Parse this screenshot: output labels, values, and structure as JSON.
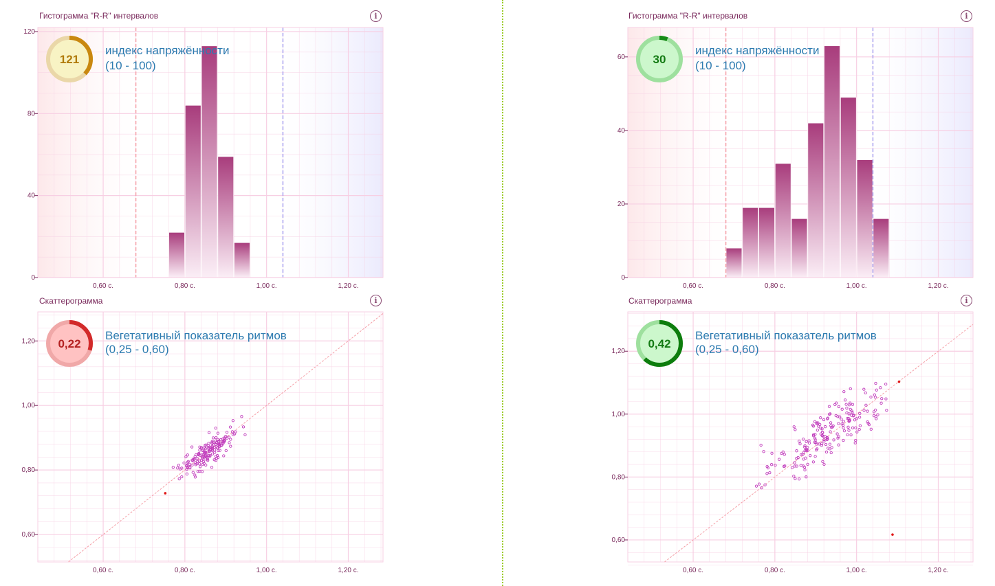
{
  "panels": [
    {
      "histogram": {
        "title": "Гистограмма \"R-R\" интервалов",
        "indicator": {
          "value": "121",
          "title": "индекс напряжённости",
          "range": "(10 - 100)",
          "ring_color": "#c9880f",
          "ring_bg": "#ead7a8",
          "fill_color": "#f8f3c4",
          "text_color": "#b07a0a"
        }
      },
      "scatter": {
        "title": "Скаттерограмма",
        "indicator": {
          "value": "0,22",
          "title": "Вегетативный показатель ритмов",
          "range": "(0,25 - 0,60)",
          "ring_color": "#d22a2a",
          "ring_bg": "#f0a8a8",
          "fill_color": "#ffc2c2",
          "text_color": "#b32020"
        }
      }
    },
    {
      "histogram": {
        "title": "Гистограмма \"R-R\" интервалов",
        "indicator": {
          "value": "30",
          "title": "индекс напряжённости",
          "range": "(10 - 100)",
          "ring_color": "#168a16",
          "ring_bg": "#9ee09e",
          "fill_color": "#ccf7cc",
          "text_color": "#137a13"
        }
      },
      "scatter": {
        "title": "Скаттерограмма",
        "indicator": {
          "value": "0,42",
          "title": "Вегетативный показатель ритмов",
          "range": "(0,25 - 0,60)",
          "ring_color": "#0d7d0d",
          "ring_bg": "#9ee09e",
          "fill_color": "#ccf7cc",
          "text_color": "#137a13"
        }
      }
    }
  ],
  "colors": {
    "bar_top": "#a83c7c",
    "bar_bottom": "#fbeef6",
    "grid": "#f7cfe3",
    "low_zone": "#fde8ea",
    "high_zone": "#ebeafd",
    "low_line": "#f5a0a8",
    "high_line": "#a8a0ee",
    "scatter_point": "#c03cbc",
    "diagonal": "#f5a0a8",
    "outlier": "#e01818"
  },
  "chart_data": [
    {
      "type": "bar",
      "x_unit": "s",
      "bin_width": 0.04,
      "x_tick_labels": [
        "0,60 с.",
        "0,80 с.",
        "1,00 с.",
        "1,20 с."
      ],
      "x_ticks": [
        0.6,
        0.8,
        1.0,
        1.2
      ],
      "xlim": [
        0.44,
        1.285
      ],
      "ylim": [
        0,
        122
      ],
      "y_ticks": [
        0,
        40,
        80,
        120
      ],
      "y_tick_labels": [
        "0",
        "40",
        "80",
        "120"
      ],
      "bins": [
        0.78,
        0.82,
        0.86,
        0.9,
        0.94
      ],
      "values": [
        22,
        84,
        113,
        59,
        17
      ],
      "low_threshold": 0.68,
      "high_threshold": 1.04,
      "grid": true
    },
    {
      "type": "bar",
      "x_unit": "s",
      "bin_width": 0.04,
      "x_tick_labels": [
        "0,60 с.",
        "0,80 с.",
        "1,00 с.",
        "1,20 с."
      ],
      "x_ticks": [
        0.6,
        0.8,
        1.0,
        1.2
      ],
      "xlim": [
        0.44,
        1.285
      ],
      "ylim": [
        0,
        68
      ],
      "y_ticks": [
        0,
        20,
        40,
        60
      ],
      "y_tick_labels": [
        "0",
        "20",
        "40",
        "60"
      ],
      "bins": [
        0.7,
        0.74,
        0.78,
        0.82,
        0.86,
        0.9,
        0.94,
        0.98,
        1.02,
        1.06
      ],
      "values": [
        8,
        19,
        19,
        31,
        16,
        42,
        63,
        49,
        32,
        16
      ],
      "low_threshold": 0.68,
      "high_threshold": 1.04,
      "grid": true
    },
    {
      "type": "scatter",
      "x_tick_labels": [
        "0,60 с.",
        "0,80 с.",
        "1,00 с.",
        "1,20 с."
      ],
      "x_ticks": [
        0.6,
        0.8,
        1.0,
        1.2
      ],
      "xlim": [
        0.44,
        1.285
      ],
      "ylim": [
        0.515,
        1.29
      ],
      "y_ticks": [
        0.6,
        0.8,
        1.0,
        1.2
      ],
      "y_tick_labels": [
        "0,60",
        "0,80",
        "1,00",
        "1,20"
      ],
      "cloud": {
        "center": [
          0.86,
          0.86
        ],
        "sx": 0.04,
        "sy": 0.037,
        "rho": 0.78,
        "n": 170,
        "xmin": 0.77,
        "xmax": 0.96
      },
      "outliers": [
        [
          0.752,
          0.728
        ]
      ],
      "diagonal": true,
      "grid": true
    },
    {
      "type": "scatter",
      "x_tick_labels": [
        "0,60 с.",
        "0,80 с.",
        "1,00 с.",
        "1,20 с."
      ],
      "x_ticks": [
        0.6,
        0.8,
        1.0,
        1.2
      ],
      "xlim": [
        0.44,
        1.285
      ],
      "ylim": [
        0.53,
        1.325
      ],
      "y_ticks": [
        0.6,
        0.8,
        1.0,
        1.2
      ],
      "y_tick_labels": [
        "0,60",
        "0,80",
        "1,00",
        "1,20"
      ],
      "cloud": {
        "center": [
          0.93,
          0.935
        ],
        "sx": 0.085,
        "sy": 0.08,
        "rho": 0.85,
        "n": 200,
        "xmin": 0.68,
        "xmax": 1.08
      },
      "outliers": [
        [
          1.104,
          1.103
        ],
        [
          1.088,
          0.617
        ]
      ],
      "diagonal": true,
      "grid": true
    }
  ]
}
